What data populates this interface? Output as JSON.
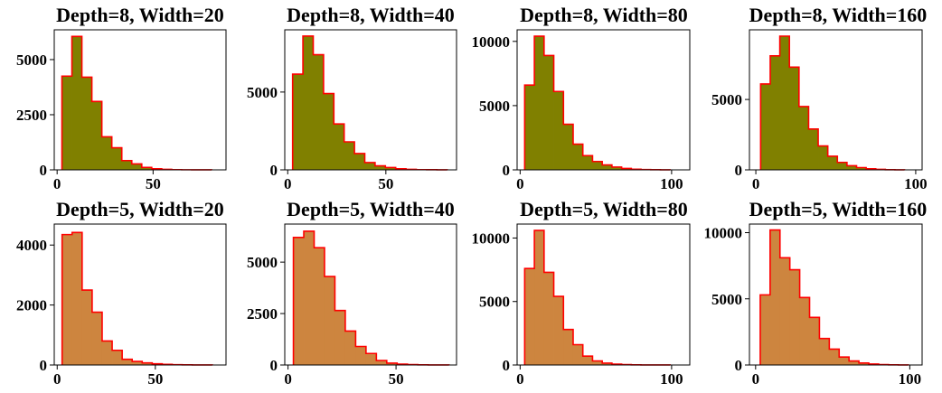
{
  "figure": {
    "colors": {
      "edge": "#ff0000",
      "depth8_fill": "#808000",
      "depth5_fill": "#cd853f",
      "axes": "#000000"
    }
  },
  "chart_data": [
    {
      "type": "bar",
      "title": "Depth=8, Width=20",
      "bin_edges": [
        2.5,
        7.7,
        12.9,
        18.1,
        23.3,
        28.5,
        33.7,
        38.9,
        44.1,
        49.3,
        54.5,
        59.7,
        64.9,
        70.1,
        75.3,
        80.5
      ],
      "counts": [
        4250,
        6050,
        4200,
        3100,
        1500,
        1000,
        420,
        270,
        110,
        50,
        25,
        10,
        5,
        3,
        2
      ],
      "xlim": [
        -1.5,
        88
      ],
      "ylim": [
        0,
        6350
      ],
      "xticks": [
        0,
        50
      ],
      "yticks": [
        0,
        2500,
        5000
      ],
      "fill_color": "#808000"
    },
    {
      "type": "bar",
      "title": "Depth=8, Width=40",
      "bin_edges": [
        2.5,
        7.75,
        13.0,
        18.25,
        23.5,
        28.75,
        34.0,
        39.25,
        44.5,
        49.75,
        55.0,
        60.25,
        65.5,
        70.75,
        76.0,
        81.25
      ],
      "counts": [
        6150,
        8600,
        7400,
        4900,
        2950,
        1800,
        1050,
        470,
        260,
        150,
        70,
        30,
        15,
        8,
        3
      ],
      "xlim": [
        -1.5,
        86
      ],
      "ylim": [
        0,
        9000
      ],
      "xticks": [
        0,
        50
      ],
      "yticks": [
        0,
        5000
      ],
      "fill_color": "#808000"
    },
    {
      "type": "bar",
      "title": "Depth=8, Width=80",
      "bin_edges": [
        3.0,
        9.4,
        15.8,
        22.2,
        28.6,
        35.0,
        41.4,
        47.8,
        54.2,
        60.6,
        67.0,
        73.4,
        79.8,
        86.2,
        92.6,
        99.0
      ],
      "counts": [
        6600,
        10400,
        8900,
        6100,
        3550,
        2000,
        1100,
        650,
        380,
        220,
        110,
        50,
        20,
        10,
        5
      ],
      "xlim": [
        -2,
        112
      ],
      "ylim": [
        0,
        10900
      ],
      "xticks": [
        0,
        100
      ],
      "yticks": [
        0,
        5000,
        10000
      ],
      "fill_color": "#808000"
    },
    {
      "type": "bar",
      "title": "Depth=8, Width=160",
      "bin_edges": [
        3.0,
        9.0,
        15.0,
        21.0,
        27.0,
        33.0,
        39.0,
        45.0,
        51.0,
        57.0,
        63.0,
        69.0,
        75.0,
        81.0,
        87.0,
        93.0
      ],
      "counts": [
        6100,
        8100,
        9500,
        7300,
        4500,
        2900,
        1700,
        970,
        530,
        290,
        160,
        80,
        40,
        15,
        5
      ],
      "xlim": [
        -4,
        104
      ],
      "ylim": [
        0,
        9950
      ],
      "xticks": [
        0,
        100
      ],
      "yticks": [
        0,
        5000
      ],
      "fill_color": "#808000"
    },
    {
      "type": "bar",
      "title": "Depth=5, Width=20",
      "bin_edges": [
        2.5,
        7.6,
        12.7,
        17.8,
        22.9,
        28.0,
        33.1,
        38.2,
        43.3,
        48.4,
        53.5,
        58.6,
        63.7,
        68.8,
        73.9,
        79.0
      ],
      "counts": [
        4350,
        4420,
        2500,
        1760,
        800,
        490,
        190,
        120,
        70,
        40,
        20,
        10,
        5,
        3,
        2
      ],
      "xlim": [
        -1.5,
        86
      ],
      "ylim": [
        0,
        4700
      ],
      "xticks": [
        0,
        50
      ],
      "yticks": [
        0,
        2000,
        4000
      ],
      "fill_color": "#cd853f"
    },
    {
      "type": "bar",
      "title": "Depth=5, Width=40",
      "bin_edges": [
        2.5,
        7.3,
        12.1,
        16.9,
        21.7,
        26.5,
        31.3,
        36.1,
        40.9,
        45.7,
        50.5,
        55.3,
        60.1,
        64.9,
        69.7,
        74.5
      ],
      "counts": [
        6200,
        6500,
        5700,
        4300,
        2650,
        1650,
        900,
        560,
        220,
        90,
        40,
        20,
        10,
        5,
        2
      ],
      "xlim": [
        -1.5,
        78
      ],
      "ylim": [
        0,
        6850
      ],
      "xticks": [
        0,
        50
      ],
      "yticks": [
        0,
        2500,
        5000
      ],
      "fill_color": "#cd853f"
    },
    {
      "type": "bar",
      "title": "Depth=5, Width=80",
      "bin_edges": [
        3.0,
        9.4,
        15.8,
        22.2,
        28.6,
        35.0,
        41.4,
        47.8,
        54.2,
        60.6,
        67.0,
        73.4,
        79.8,
        86.2,
        92.6,
        99.0
      ],
      "counts": [
        7600,
        10600,
        7300,
        5400,
        2800,
        1600,
        700,
        320,
        150,
        70,
        30,
        15,
        8,
        4,
        2
      ],
      "xlim": [
        -2,
        112
      ],
      "ylim": [
        0,
        11100
      ],
      "xticks": [
        0,
        100
      ],
      "yticks": [
        0,
        5000,
        10000
      ],
      "fill_color": "#cd853f"
    },
    {
      "type": "bar",
      "title": "Depth=5, Width=160",
      "bin_edges": [
        3.0,
        9.4,
        15.8,
        22.2,
        28.6,
        35.0,
        41.4,
        47.8,
        54.2,
        60.6,
        67.0,
        73.4,
        79.8,
        86.2,
        92.6,
        99.0
      ],
      "counts": [
        5300,
        10200,
        8100,
        7200,
        5100,
        3600,
        2000,
        1200,
        600,
        300,
        150,
        70,
        30,
        15,
        5
      ],
      "xlim": [
        -4,
        108
      ],
      "ylim": [
        0,
        10650
      ],
      "xticks": [
        0,
        100
      ],
      "yticks": [
        0,
        5000,
        10000
      ],
      "fill_color": "#cd853f"
    }
  ]
}
